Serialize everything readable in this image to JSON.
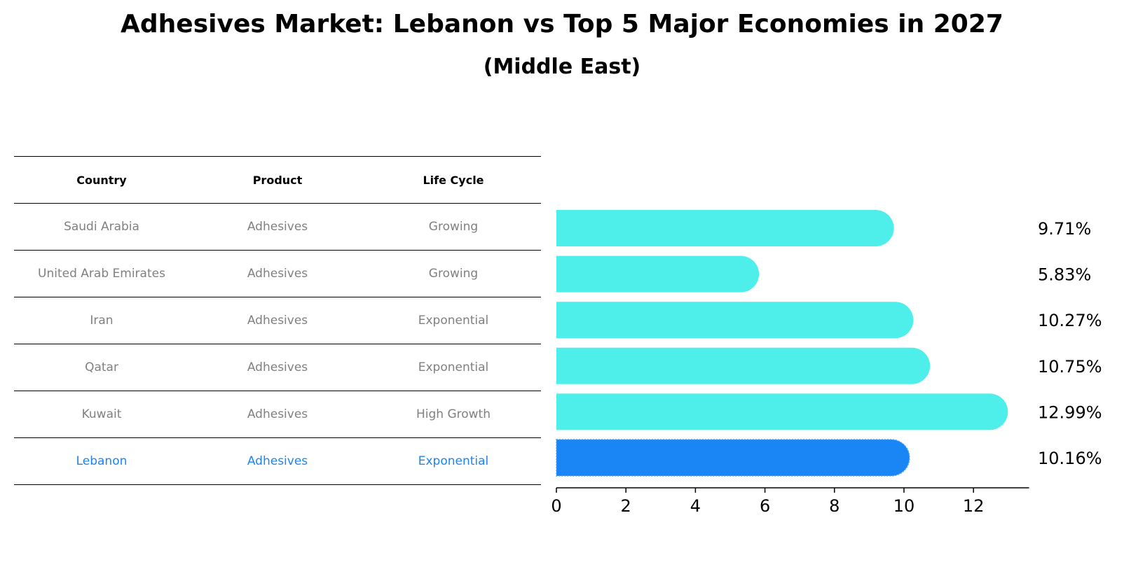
{
  "title": "Adhesives Market: Lebanon vs Top 5 Major Economies in 2027",
  "subtitle": "(Middle East)",
  "table": {
    "headers": [
      "Country",
      "Product",
      "Life Cycle"
    ],
    "rows": [
      [
        "Saudi Arabia",
        "Adhesives",
        "Growing"
      ],
      [
        "United Arab Emirates",
        "Adhesives",
        "Growing"
      ],
      [
        "Iran",
        "Adhesives",
        "Exponential"
      ],
      [
        "Qatar",
        "Adhesives",
        "Exponential"
      ],
      [
        "Kuwait",
        "Adhesives",
        "High Growth"
      ],
      [
        "Lebanon",
        "Adhesives",
        "Exponential"
      ]
    ],
    "highlight_row": 5
  },
  "colors": {
    "bar": "#4EEEEA",
    "highlight_bar": "#1A85F4",
    "highlight_text": "#1A85F4",
    "row_text": "#808080"
  },
  "chart_data": {
    "type": "bar",
    "orientation": "horizontal",
    "categories": [
      "Saudi Arabia",
      "United Arab Emirates",
      "Iran",
      "Qatar",
      "Kuwait",
      "Lebanon"
    ],
    "values": [
      9.71,
      5.83,
      10.27,
      10.75,
      12.99,
      10.16
    ],
    "value_labels": [
      "9.71%",
      "5.83%",
      "10.27%",
      "10.75%",
      "12.99%",
      "10.16%"
    ],
    "highlight": "Lebanon",
    "xticks": [
      0,
      2,
      4,
      6,
      8,
      10,
      12
    ],
    "xlim": [
      0,
      13.6
    ],
    "xlabel": "",
    "ylabel": ""
  }
}
